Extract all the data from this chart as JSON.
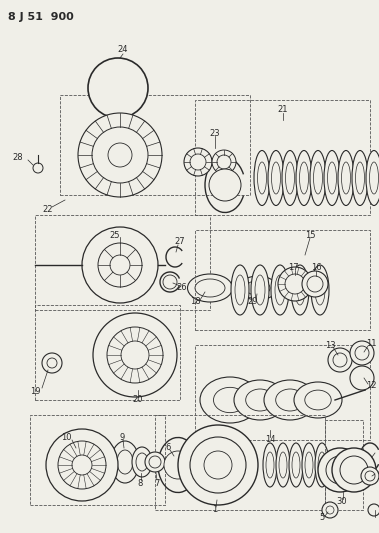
{
  "title": "8 J 51  900",
  "bg_color": "#f0efe8",
  "line_color": "#2a2a2a",
  "lw_main": 0.8,
  "fig_w": 3.79,
  "fig_h": 5.33,
  "dpi": 100
}
